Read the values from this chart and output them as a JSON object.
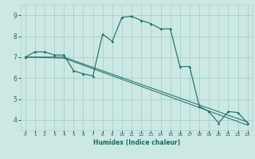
{
  "xlabel": "Humidex (Indice chaleur)",
  "bg_color": "#cce8e4",
  "grid_color": "#aacfca",
  "line_color": "#1a6b5e",
  "xlim": [
    -0.5,
    23.5
  ],
  "ylim": [
    3.5,
    9.5
  ],
  "xticks": [
    0,
    1,
    2,
    3,
    4,
    5,
    6,
    7,
    8,
    9,
    10,
    11,
    12,
    13,
    14,
    15,
    16,
    17,
    18,
    19,
    20,
    21,
    22,
    23
  ],
  "yticks": [
    4,
    5,
    6,
    7,
    8,
    9
  ],
  "series1": [
    [
      0,
      7.0
    ],
    [
      1,
      7.25
    ],
    [
      2,
      7.25
    ],
    [
      3,
      7.1
    ],
    [
      4,
      7.1
    ],
    [
      5,
      6.35
    ],
    [
      6,
      6.2
    ],
    [
      7,
      6.1
    ],
    [
      8,
      8.1
    ],
    [
      9,
      7.75
    ],
    [
      10,
      8.9
    ],
    [
      11,
      8.95
    ],
    [
      12,
      8.75
    ],
    [
      13,
      8.6
    ],
    [
      14,
      8.35
    ],
    [
      15,
      8.35
    ],
    [
      16,
      6.55
    ],
    [
      17,
      6.55
    ],
    [
      18,
      4.65
    ],
    [
      19,
      4.4
    ],
    [
      20,
      3.85
    ],
    [
      21,
      4.4
    ],
    [
      22,
      4.35
    ],
    [
      23,
      3.85
    ]
  ],
  "series2": [
    [
      0,
      7.0
    ],
    [
      4,
      7.0
    ],
    [
      23,
      3.9
    ]
  ],
  "series3": [
    [
      0,
      7.0
    ],
    [
      4,
      6.95
    ],
    [
      23,
      3.75
    ]
  ]
}
